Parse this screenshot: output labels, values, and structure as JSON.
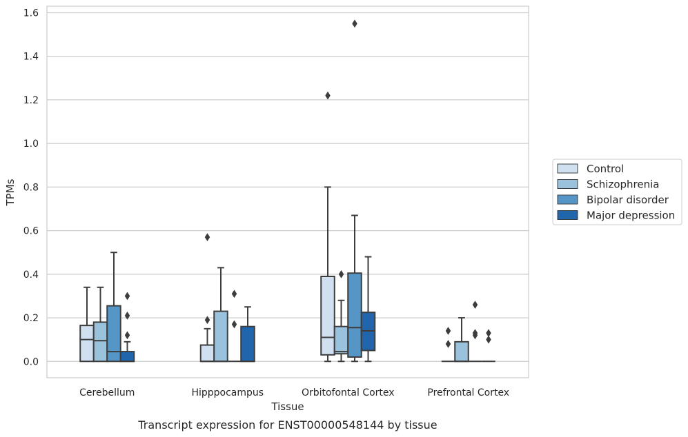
{
  "caption": "Transcript expression for ENST00000548144 by tissue",
  "chart_data": {
    "type": "box",
    "xlabel": "Tissue",
    "ylabel": "TPMs",
    "ylim": [
      -0.075,
      1.63
    ],
    "yticks": [
      "0.0",
      "0.2",
      "0.4",
      "0.6",
      "0.8",
      "1.0",
      "1.2",
      "1.4",
      "1.6"
    ],
    "ytick_values": [
      0,
      0.2,
      0.4,
      0.6,
      0.8,
      1.0,
      1.2,
      1.4,
      1.6
    ],
    "grid": "horizontal",
    "legend_position": "right",
    "categories": [
      "Cerebellum",
      "Hipppocampus",
      "Orbitofontal Cortex",
      "Prefrontal Cortex"
    ],
    "series": [
      {
        "name": "Control",
        "color": "#d0e0f0",
        "boxes": [
          {
            "category": "Cerebellum",
            "whisker_low": 0.0,
            "q1": 0.0,
            "median": 0.1,
            "q3": 0.165,
            "whisker_high": 0.34,
            "outliers": []
          },
          {
            "category": "Hipppocampus",
            "whisker_low": 0.0,
            "q1": 0.0,
            "median": 0.0,
            "q3": 0.075,
            "whisker_high": 0.15,
            "outliers": [
              0.19,
              0.57
            ]
          },
          {
            "category": "Orbitofontal Cortex",
            "whisker_low": 0.0,
            "q1": 0.03,
            "median": 0.11,
            "q3": 0.39,
            "whisker_high": 0.8,
            "outliers": [
              1.22
            ]
          },
          {
            "category": "Prefrontal Cortex",
            "whisker_low": 0.0,
            "q1": 0.0,
            "median": 0.0,
            "q3": 0.0,
            "whisker_high": 0.0,
            "outliers": [
              0.08,
              0.14
            ]
          }
        ]
      },
      {
        "name": "Schizophrenia",
        "color": "#9ac2dc",
        "boxes": [
          {
            "category": "Cerebellum",
            "whisker_low": 0.0,
            "q1": 0.0,
            "median": 0.095,
            "q3": 0.18,
            "whisker_high": 0.34,
            "outliers": []
          },
          {
            "category": "Hipppocampus",
            "whisker_low": 0.0,
            "q1": 0.0,
            "median": 0.0,
            "q3": 0.23,
            "whisker_high": 0.43,
            "outliers": []
          },
          {
            "category": "Orbitofontal Cortex",
            "whisker_low": 0.0,
            "q1": 0.035,
            "median": 0.045,
            "q3": 0.16,
            "whisker_high": 0.28,
            "outliers": [
              0.4
            ]
          },
          {
            "category": "Prefrontal Cortex",
            "whisker_low": 0.0,
            "q1": 0.0,
            "median": 0.0,
            "q3": 0.09,
            "whisker_high": 0.2,
            "outliers": []
          }
        ]
      },
      {
        "name": "Bipolar disorder",
        "color": "#5596c6",
        "boxes": [
          {
            "category": "Cerebellum",
            "whisker_low": 0.0,
            "q1": 0.0,
            "median": 0.045,
            "q3": 0.255,
            "whisker_high": 0.5,
            "outliers": []
          },
          {
            "category": "Hipppocampus",
            "whisker_low": 0.0,
            "q1": 0.0,
            "median": 0.0,
            "q3": 0.0,
            "whisker_high": 0.0,
            "outliers": [
              0.17,
              0.31
            ]
          },
          {
            "category": "Orbitofontal Cortex",
            "whisker_low": 0.0,
            "q1": 0.02,
            "median": 0.155,
            "q3": 0.405,
            "whisker_high": 0.67,
            "outliers": [
              1.55
            ]
          },
          {
            "category": "Prefrontal Cortex",
            "whisker_low": 0.0,
            "q1": 0.0,
            "median": 0.0,
            "q3": 0.0,
            "whisker_high": 0.0,
            "outliers": [
              0.12,
              0.13,
              0.26
            ]
          }
        ]
      },
      {
        "name": "Major depression",
        "color": "#2166ac",
        "boxes": [
          {
            "category": "Cerebellum",
            "whisker_low": 0.0,
            "q1": 0.0,
            "median": 0.0,
            "q3": 0.045,
            "whisker_high": 0.09,
            "outliers": [
              0.12,
              0.21,
              0.3
            ]
          },
          {
            "category": "Hipppocampus",
            "whisker_low": 0.0,
            "q1": 0.0,
            "median": 0.0,
            "q3": 0.16,
            "whisker_high": 0.25,
            "outliers": []
          },
          {
            "category": "Orbitofontal Cortex",
            "whisker_low": 0.0,
            "q1": 0.05,
            "median": 0.14,
            "q3": 0.225,
            "whisker_high": 0.48,
            "outliers": []
          },
          {
            "category": "Prefrontal Cortex",
            "whisker_low": 0.0,
            "q1": 0.0,
            "median": 0.0,
            "q3": 0.0,
            "whisker_high": 0.0,
            "outliers": [
              0.1,
              0.13
            ]
          }
        ]
      }
    ]
  }
}
